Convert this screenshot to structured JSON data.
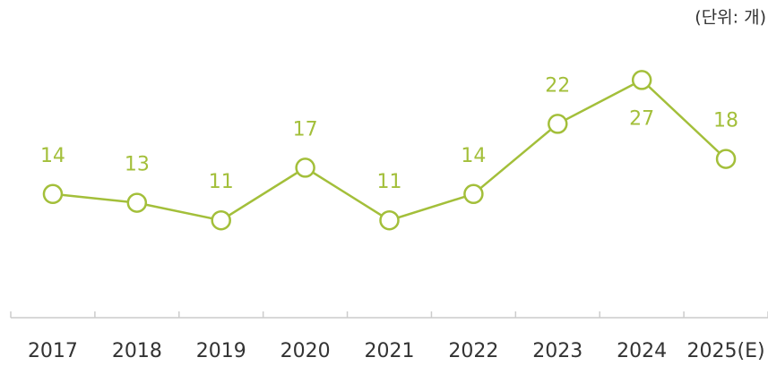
{
  "chart_data": {
    "type": "line",
    "unit_label": "(단위: 개)",
    "categories": [
      "2017",
      "2018",
      "2019",
      "2020",
      "2021",
      "2022",
      "2023",
      "2024",
      "2025(E)"
    ],
    "values": [
      14,
      13,
      11,
      17,
      11,
      14,
      22,
      27,
      18
    ],
    "color": "#a3bf3a",
    "ylim": [
      0,
      33
    ],
    "grid": false
  }
}
